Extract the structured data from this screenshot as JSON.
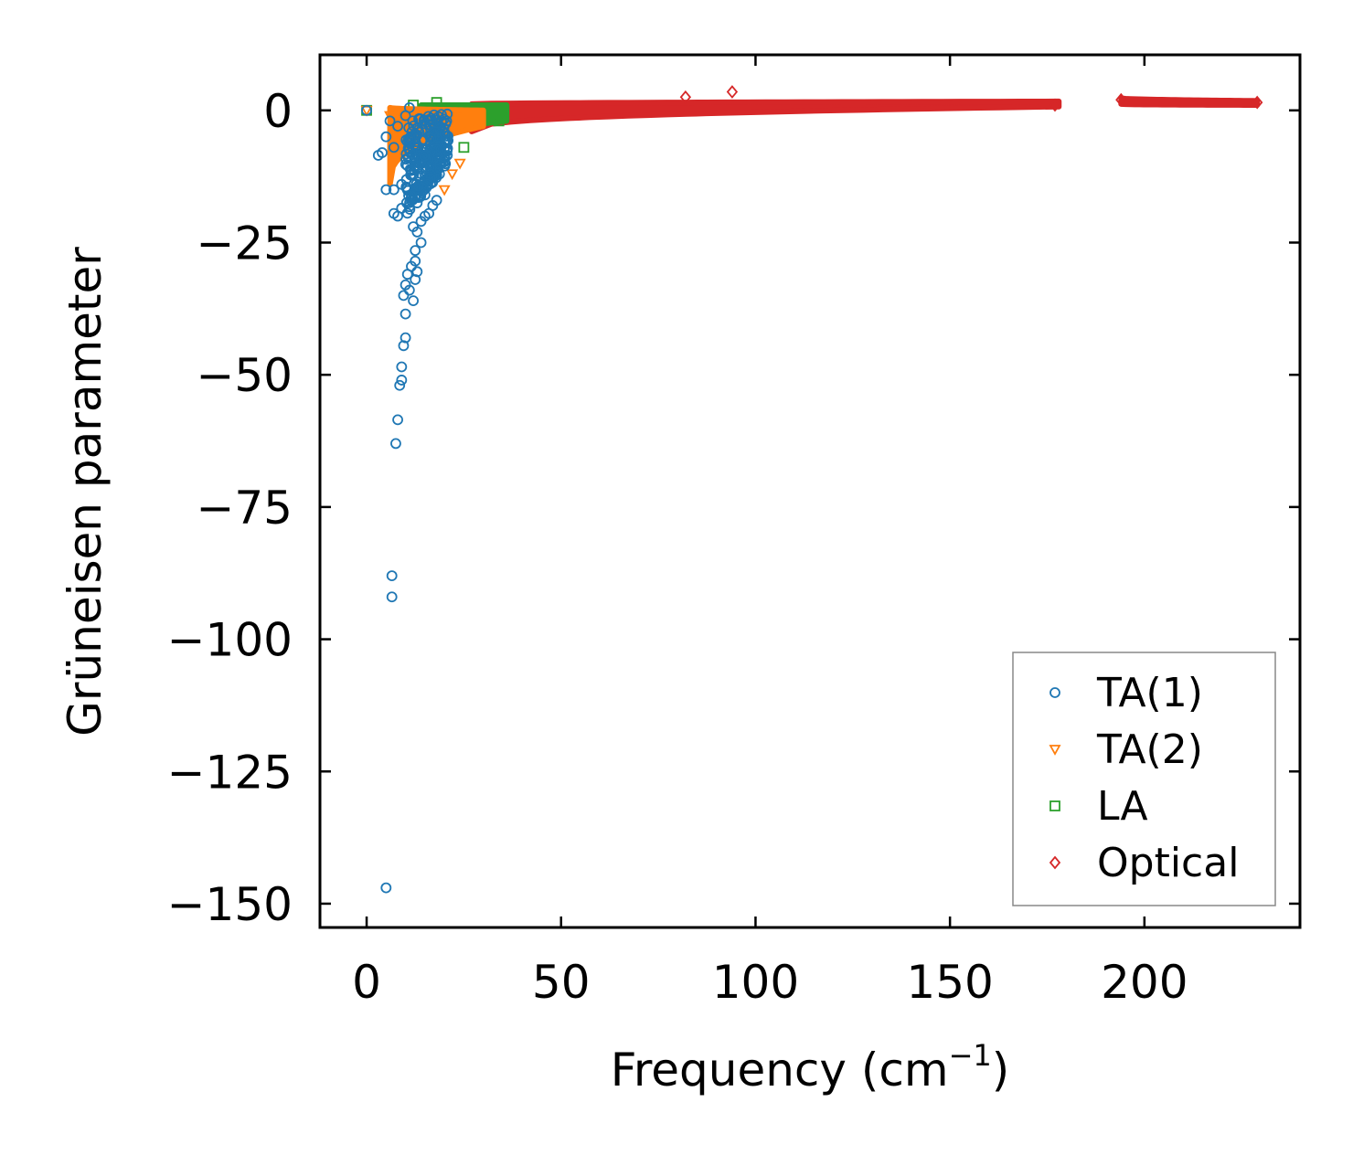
{
  "chart_data": {
    "type": "scatter",
    "title": "",
    "xlabel": "Frequency (cm",
    "xlabel_sup": "−1",
    "xlabel_close": ")",
    "ylabel": "Grüneisen parameter",
    "xlim": [
      -12,
      240
    ],
    "ylim": [
      -154.5,
      10.5
    ],
    "xticks": [
      0,
      50,
      100,
      150,
      200
    ],
    "xtick_labels": [
      "0",
      "50",
      "100",
      "150",
      "200"
    ],
    "yticks": [
      0,
      -25,
      -50,
      -75,
      -100,
      -125,
      -150
    ],
    "ytick_labels": [
      "0",
      "−25",
      "−50",
      "−75",
      "−100",
      "−125",
      "−150"
    ],
    "legend_position": "lower-right",
    "colors": {
      "ta1": "#1f77b4",
      "ta2": "#ff7f0e",
      "la": "#2ca02c",
      "optical": "#d62728"
    },
    "series": [
      {
        "name": "TA(1)",
        "marker": "circle",
        "color": "#1f77b4",
        "points": [
          [
            0,
            0
          ],
          [
            3,
            -8.5
          ],
          [
            5,
            -147
          ],
          [
            6.5,
            -88
          ],
          [
            6.5,
            -92
          ],
          [
            7.5,
            -63
          ],
          [
            8,
            -58.5
          ],
          [
            8.5,
            -52
          ],
          [
            9,
            -51
          ],
          [
            9,
            -48.5
          ],
          [
            9.5,
            -44.5
          ],
          [
            10,
            -43
          ],
          [
            10,
            -38.5
          ],
          [
            9.5,
            -35
          ],
          [
            10,
            -33
          ],
          [
            10.5,
            -31
          ],
          [
            11,
            -34
          ],
          [
            12,
            -36
          ],
          [
            11.5,
            -29.5
          ],
          [
            12.5,
            -28.5
          ],
          [
            12.5,
            -32
          ],
          [
            13,
            -30.5
          ],
          [
            12.5,
            -26.5
          ],
          [
            14,
            -25
          ],
          [
            13,
            -23
          ],
          [
            12,
            -22
          ],
          [
            7,
            -19.5
          ],
          [
            8,
            -20
          ],
          [
            9,
            -18.5
          ],
          [
            5,
            -15
          ],
          [
            7,
            -15
          ],
          [
            9,
            -14
          ],
          [
            4,
            -8
          ],
          [
            5,
            -5
          ],
          [
            6,
            -2
          ],
          [
            7,
            -7
          ],
          [
            8,
            -3
          ],
          [
            10,
            -1
          ],
          [
            11,
            0.5
          ],
          [
            14,
            -21
          ],
          [
            15,
            -20
          ],
          [
            16,
            -19.5
          ],
          [
            17,
            -18
          ],
          [
            18,
            -17
          ],
          [
            15,
            -16
          ],
          [
            13,
            -17.5
          ]
        ],
        "dense_region": {
          "x": [
            10,
            21
          ],
          "y_top": [
            -2,
            0
          ],
          "y_bottom": [
            -20,
            -10
          ]
        }
      },
      {
        "name": "TA(2)",
        "marker": "triangle-down",
        "color": "#ff7f0e",
        "points": [
          [
            0,
            0
          ],
          [
            6,
            -1
          ],
          [
            20,
            -15
          ],
          [
            24,
            -10
          ],
          [
            22,
            -12
          ]
        ],
        "band": {
          "x": [
            6,
            30
          ],
          "y_top": [
            0.5,
            0
          ],
          "y_bottom": [
            -14,
            -3
          ]
        }
      },
      {
        "name": "LA",
        "marker": "square",
        "color": "#2ca02c",
        "points": [
          [
            0,
            0
          ],
          [
            12,
            1
          ],
          [
            18,
            1.5
          ],
          [
            25,
            -7
          ],
          [
            34,
            -2
          ]
        ],
        "band": {
          "x": [
            14,
            36
          ],
          "y_top": [
            1,
            1
          ],
          "y_bottom": [
            -7,
            -2
          ]
        }
      },
      {
        "name": "Optical",
        "marker": "diamond",
        "color": "#d62728",
        "points": [
          [
            27,
            -1
          ],
          [
            82,
            2.5
          ],
          [
            94,
            3.5
          ],
          [
            177,
            1
          ],
          [
            194,
            2
          ],
          [
            229,
            1.5
          ]
        ],
        "band": [
          {
            "x": [
              27,
              178
            ],
            "y_top": [
              1.2,
              1.7
            ],
            "y_bottom": [
              -4,
              0.7
            ]
          },
          {
            "x": [
              194,
              229
            ],
            "y_top": [
              2.3,
              1.8
            ],
            "y_bottom": [
              1.2,
              1.0
            ]
          }
        ]
      }
    ]
  }
}
